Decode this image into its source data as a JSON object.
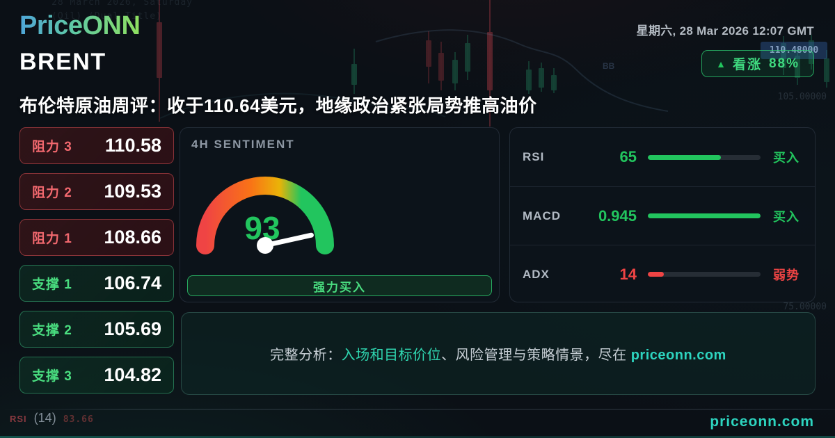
{
  "brand": {
    "logo": "PriceONN",
    "datetime": "星期六, 28 Mar 2026 12:07 GMT",
    "footer_url": "priceonn.com"
  },
  "header": {
    "symbol": "BRENT",
    "badge": {
      "arrow": "▲",
      "label": "看涨",
      "confidence": "88%"
    },
    "headline": "布伦特原油周评：收于110.64美元，地缘政治紧张局势推高油价"
  },
  "levels": {
    "resistance": [
      {
        "label": "阻力 3",
        "value": "110.58"
      },
      {
        "label": "阻力 2",
        "value": "109.53"
      },
      {
        "label": "阻力 1",
        "value": "108.66"
      }
    ],
    "support": [
      {
        "label": "支撑 1",
        "value": "106.74"
      },
      {
        "label": "支撑 2",
        "value": "105.69"
      },
      {
        "label": "支撑 3",
        "value": "104.82"
      }
    ]
  },
  "sentiment": {
    "title": "4H SENTIMENT",
    "value": 93,
    "max": 100,
    "signal": "强力买入"
  },
  "indicators": [
    {
      "name": "RSI",
      "value": "65",
      "signal": "买入",
      "percent": 65,
      "state": "bullish"
    },
    {
      "name": "MACD",
      "value": "0.945",
      "signal": "买入",
      "percent": 100,
      "state": "bullish"
    },
    {
      "name": "ADX",
      "value": "14",
      "signal": "弱势",
      "percent": 14,
      "state": "bearish"
    }
  ],
  "cta": {
    "prefix": "完整分析：",
    "highlight": "入场和目标价位",
    "middle": "、风险管理与策略情景，尽在 ",
    "link": "priceonn.com"
  },
  "background": {
    "price_tag": "110.48000",
    "axis_label_top": "105.00000",
    "axis_label_bottom": "75.00000",
    "bb_label": "BB",
    "rsi_footer": {
      "name": "RSI",
      "period": "(14)",
      "value": "83.66"
    },
    "faint_line1": "28 March 2026, Saturday",
    "faint_line2": "(Oil) (Dual Title)"
  },
  "colors": {
    "bullish": "#22c55e",
    "bearish": "#ef4444",
    "teal": "#2dd4bf",
    "gauge": [
      "#ef4444",
      "#f97316",
      "#eab308",
      "#22c55e"
    ]
  }
}
